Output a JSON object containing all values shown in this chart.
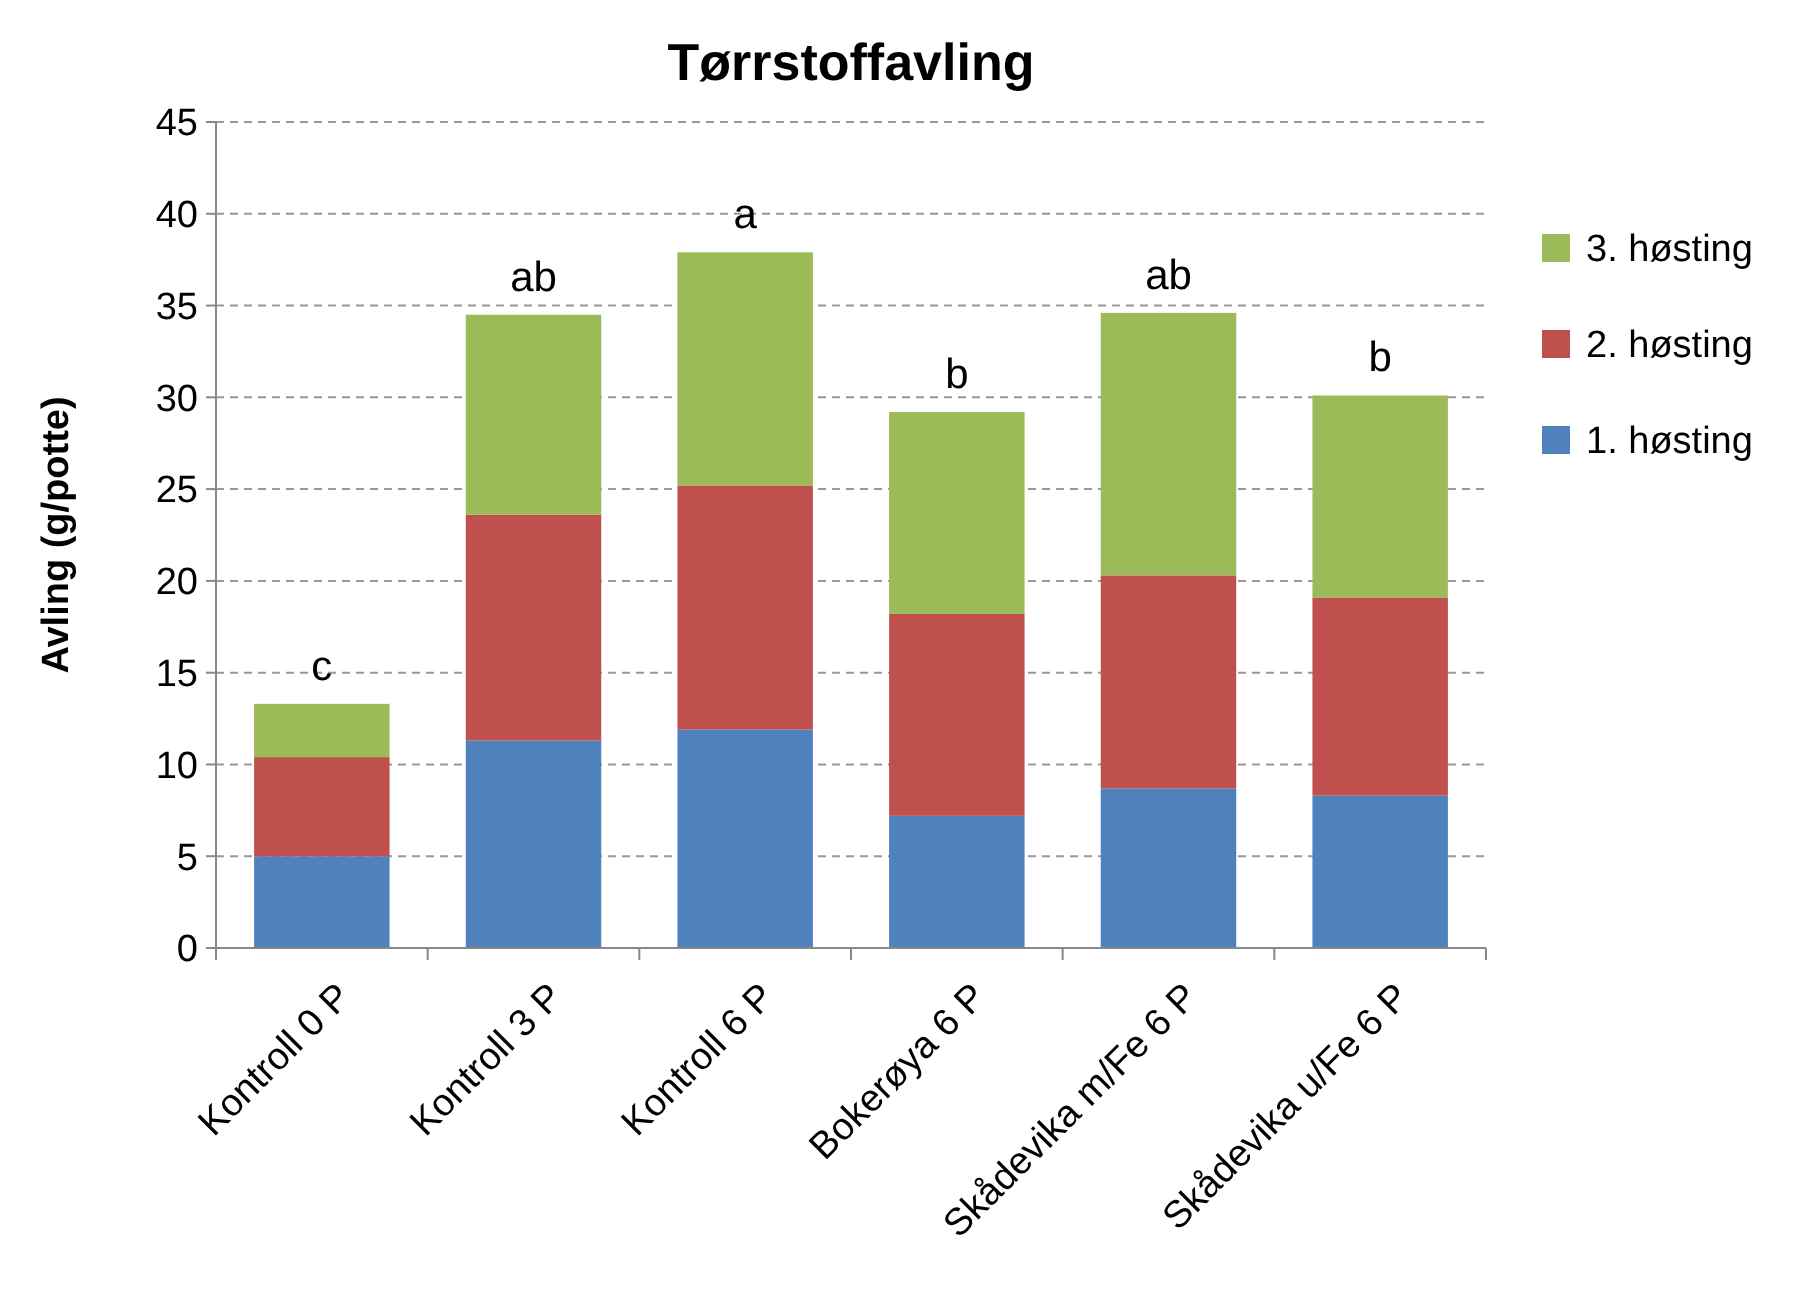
{
  "chart_data": {
    "type": "bar",
    "title": "Tørrstoffavling",
    "ylabel": "Avling (g/potte)",
    "categories": [
      "Kontroll  0 P",
      "Kontroll  3 P",
      "Kontroll  6 P",
      "Bokerøya 6 P",
      "Skådevika m/Fe 6 P",
      "Skådevika u/Fe 6 P"
    ],
    "series": [
      {
        "name": "1. høsting",
        "color": "#4f81bd",
        "values": [
          5.0,
          11.3,
          11.9,
          7.2,
          8.7,
          8.3
        ]
      },
      {
        "name": "2. høsting",
        "color": "#c0504d",
        "values": [
          5.4,
          12.3,
          13.3,
          11.0,
          11.6,
          10.8
        ]
      },
      {
        "name": "3. høsting",
        "color": "#9bbb59",
        "values": [
          2.9,
          10.9,
          12.7,
          11.0,
          14.3,
          11.0
        ]
      }
    ],
    "stacked": true,
    "ylim": [
      0,
      45
    ],
    "yticks": [
      0,
      5,
      10,
      15,
      20,
      25,
      30,
      35,
      40,
      45
    ],
    "grid": "y",
    "legend": "right",
    "annotations": [
      {
        "text": "c",
        "x": "Kontroll  0 P",
        "y": 13.3
      },
      {
        "text": "ab",
        "x": "Kontroll  3 P",
        "y": 34.5
      },
      {
        "text": "a",
        "x": "Kontroll  6 P",
        "y": 37.9
      },
      {
        "text": "b",
        "x": "Bokerøya 6 P",
        "y": 29.2
      },
      {
        "text": "ab",
        "x": "Skådevika m/Fe 6 P",
        "y": 34.6
      },
      {
        "text": "b",
        "x": "Skådevika u/Fe 6 P",
        "y": 30.1
      }
    ]
  }
}
